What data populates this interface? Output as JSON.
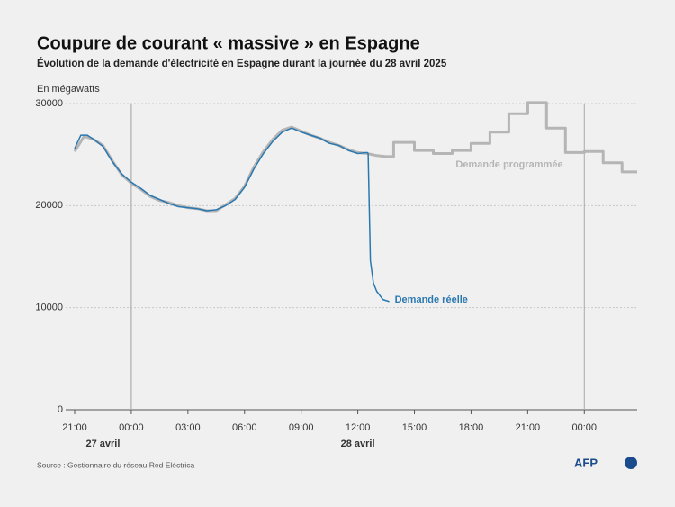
{
  "title": "Coupure de courant « massive » en Espagne",
  "subtitle": "Évolution de la demande d'électricité en Espagne durant la journée du 28 avril 2025",
  "source": "Source : Gestionnaire du réseau Red Eléctrica",
  "logo": "AFP",
  "chart_data": {
    "type": "line",
    "y_label": "En mégawatts",
    "xlim": [
      21,
      50.8
    ],
    "ylim": [
      0,
      30000
    ],
    "yticks": [
      0,
      10000,
      20000,
      30000
    ],
    "xticks": [
      {
        "value": 21,
        "label": "21:00"
      },
      {
        "value": 24,
        "label": "00:00"
      },
      {
        "value": 27,
        "label": "03:00"
      },
      {
        "value": 30,
        "label": "06:00"
      },
      {
        "value": 33,
        "label": "09:00"
      },
      {
        "value": 36,
        "label": "12:00"
      },
      {
        "value": 39,
        "label": "15:00"
      },
      {
        "value": 42,
        "label": "18:00"
      },
      {
        "value": 45,
        "label": "21:00"
      },
      {
        "value": 48,
        "label": "00:00"
      }
    ],
    "x_groups": [
      {
        "label": "27 avril",
        "x": [
          21,
          24
        ]
      },
      {
        "label": "28 avril",
        "x": [
          24,
          48
        ]
      }
    ],
    "grid": true,
    "series": [
      {
        "name": "Demande programmée",
        "color": "#b5b5b5",
        "x": [
          21,
          21.5,
          22,
          22.5,
          23,
          23.5,
          24,
          24.5,
          25,
          25.5,
          26,
          26.5,
          27,
          27.5,
          28,
          28.5,
          29,
          29.5,
          30,
          30.5,
          31,
          31.5,
          32,
          32.5,
          33,
          33.5,
          34,
          34.5,
          35,
          35.5,
          36,
          36.5,
          37,
          37.5,
          37.9,
          37.9,
          39,
          39,
          40,
          40,
          41,
          41,
          42,
          42,
          43,
          43,
          44,
          44,
          45,
          45,
          46,
          46,
          47,
          47,
          48,
          48,
          49,
          49,
          50,
          50,
          50.8
        ],
        "values": [
          25300,
          26800,
          26500,
          25900,
          24400,
          23000,
          22200,
          21600,
          20900,
          20500,
          20300,
          20000,
          19800,
          19700,
          19500,
          19500,
          20100,
          20700,
          21900,
          23800,
          25300,
          26500,
          27400,
          27700,
          27300,
          26900,
          26600,
          26200,
          25900,
          25500,
          25200,
          25100,
          24900,
          24800,
          24800,
          26200,
          26200,
          25400,
          25400,
          25100,
          25100,
          25400,
          25400,
          26100,
          26100,
          27200,
          27200,
          29000,
          29000,
          30100,
          30100,
          27600,
          27600,
          25200,
          25200,
          25300,
          25300,
          24200,
          24200,
          23300,
          23300
        ]
      },
      {
        "name": "Demande réelle",
        "color": "#2a78b0",
        "x": [
          21,
          21.33,
          21.67,
          22,
          22.5,
          23,
          23.5,
          24,
          24.5,
          25,
          25.5,
          26,
          26.5,
          27,
          27.5,
          28,
          28.5,
          29,
          29.5,
          30,
          30.5,
          31,
          31.5,
          32,
          32.5,
          33,
          33.5,
          34,
          34.5,
          35,
          35.5,
          36,
          36.5,
          36.55,
          36.67,
          36.83,
          37,
          37.33,
          37.67
        ],
        "values": [
          25600,
          26900,
          26900,
          26500,
          25800,
          24300,
          23100,
          22300,
          21700,
          21000,
          20600,
          20200,
          19900,
          19800,
          19700,
          19500,
          19600,
          20000,
          20600,
          21800,
          23600,
          25100,
          26300,
          27200,
          27600,
          27200,
          26900,
          26600,
          26100,
          25900,
          25400,
          25100,
          25200,
          25100,
          14600,
          12400,
          11600,
          10800,
          10600
        ]
      }
    ]
  }
}
